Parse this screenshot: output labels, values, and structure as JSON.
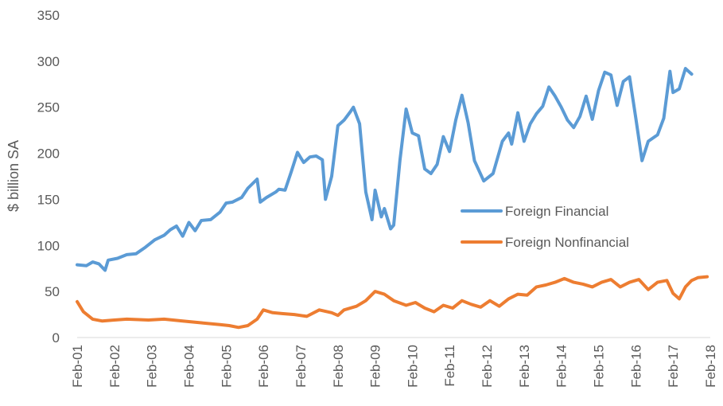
{
  "chart_data": {
    "type": "line",
    "title": "",
    "xlabel": "",
    "ylabel": "$ billion SA",
    "ylim": [
      0,
      350
    ],
    "yticks": [
      0,
      50,
      100,
      150,
      200,
      250,
      300,
      350
    ],
    "xticks": [
      "Feb-01",
      "Feb-02",
      "Feb-03",
      "Feb-04",
      "Feb-05",
      "Feb-06",
      "Feb-07",
      "Feb-08",
      "Feb-09",
      "Feb-10",
      "Feb-11",
      "Feb-12",
      "Feb-13",
      "Feb-14",
      "Feb-15",
      "Feb-16",
      "Feb-17",
      "Feb-18"
    ],
    "grid": false,
    "legend_position": "center-right",
    "series": [
      {
        "name": "Foreign Financial",
        "color": "#5b9bd5",
        "points": [
          [
            "2001-02",
            79
          ],
          [
            "2001-05",
            78
          ],
          [
            "2001-07",
            82
          ],
          [
            "2001-09",
            80
          ],
          [
            "2001-11",
            73
          ],
          [
            "2001-12",
            84
          ],
          [
            "2002-03",
            86
          ],
          [
            "2002-06",
            90
          ],
          [
            "2002-09",
            91
          ],
          [
            "2002-12",
            98
          ],
          [
            "2003-03",
            106
          ],
          [
            "2003-06",
            111
          ],
          [
            "2003-08",
            117
          ],
          [
            "2003-10",
            121
          ],
          [
            "2003-12",
            110
          ],
          [
            "2004-02",
            125
          ],
          [
            "2004-04",
            116
          ],
          [
            "2004-06",
            127
          ],
          [
            "2004-09",
            128
          ],
          [
            "2004-12",
            136
          ],
          [
            "2005-02",
            146
          ],
          [
            "2005-04",
            147
          ],
          [
            "2005-07",
            152
          ],
          [
            "2005-09",
            162
          ],
          [
            "2005-12",
            172
          ],
          [
            "2006-01",
            147
          ],
          [
            "2006-03",
            152
          ],
          [
            "2006-06",
            158
          ],
          [
            "2006-07",
            161
          ],
          [
            "2006-09",
            160
          ],
          [
            "2006-11",
            180
          ],
          [
            "2007-01",
            201
          ],
          [
            "2007-03",
            190
          ],
          [
            "2007-05",
            196
          ],
          [
            "2007-07",
            197
          ],
          [
            "2007-09",
            193
          ],
          [
            "2007-10",
            150
          ],
          [
            "2007-12",
            175
          ],
          [
            "2008-02",
            230
          ],
          [
            "2008-04",
            236
          ],
          [
            "2008-06",
            245
          ],
          [
            "2008-07",
            250
          ],
          [
            "2008-09",
            232
          ],
          [
            "2008-11",
            158
          ],
          [
            "2009-01",
            128
          ],
          [
            "2009-02",
            160
          ],
          [
            "2009-04",
            131
          ],
          [
            "2009-05",
            140
          ],
          [
            "2009-07",
            118
          ],
          [
            "2009-08",
            122
          ],
          [
            "2009-10",
            192
          ],
          [
            "2009-12",
            248
          ],
          [
            "2010-02",
            222
          ],
          [
            "2010-04",
            219
          ],
          [
            "2010-06",
            183
          ],
          [
            "2010-08",
            178
          ],
          [
            "2010-10",
            188
          ],
          [
            "2010-12",
            218
          ],
          [
            "2011-02",
            202
          ],
          [
            "2011-04",
            236
          ],
          [
            "2011-06",
            263
          ],
          [
            "2011-08",
            233
          ],
          [
            "2011-10",
            192
          ],
          [
            "2012-01",
            170
          ],
          [
            "2012-04",
            178
          ],
          [
            "2012-07",
            213
          ],
          [
            "2012-09",
            222
          ],
          [
            "2012-10",
            210
          ],
          [
            "2012-12",
            244
          ],
          [
            "2013-02",
            213
          ],
          [
            "2013-04",
            232
          ],
          [
            "2013-06",
            243
          ],
          [
            "2013-08",
            251
          ],
          [
            "2013-10",
            272
          ],
          [
            "2013-12",
            262
          ],
          [
            "2014-02",
            250
          ],
          [
            "2014-04",
            236
          ],
          [
            "2014-06",
            228
          ],
          [
            "2014-08",
            240
          ],
          [
            "2014-10",
            262
          ],
          [
            "2014-12",
            237
          ],
          [
            "2015-02",
            268
          ],
          [
            "2015-04",
            288
          ],
          [
            "2015-06",
            285
          ],
          [
            "2015-08",
            252
          ],
          [
            "2015-10",
            278
          ],
          [
            "2015-12",
            283
          ],
          [
            "2016-02",
            238
          ],
          [
            "2016-04",
            192
          ],
          [
            "2016-06",
            213
          ],
          [
            "2016-09",
            220
          ],
          [
            "2016-11",
            238
          ],
          [
            "2017-01",
            289
          ],
          [
            "2017-02",
            266
          ],
          [
            "2017-04",
            270
          ],
          [
            "2017-06",
            292
          ],
          [
            "2017-08",
            286
          ]
        ]
      },
      {
        "name": "Foreign Nonfinancial",
        "color": "#ed7d31",
        "points": [
          [
            "2001-02",
            39
          ],
          [
            "2001-04",
            28
          ],
          [
            "2001-07",
            20
          ],
          [
            "2001-10",
            18
          ],
          [
            "2002-02",
            19
          ],
          [
            "2002-06",
            20
          ],
          [
            "2003-01",
            19
          ],
          [
            "2003-06",
            20
          ],
          [
            "2003-12",
            18
          ],
          [
            "2004-06",
            16
          ],
          [
            "2004-12",
            14
          ],
          [
            "2005-03",
            13
          ],
          [
            "2005-06",
            11
          ],
          [
            "2005-09",
            13
          ],
          [
            "2005-12",
            20
          ],
          [
            "2006-02",
            30
          ],
          [
            "2006-05",
            27
          ],
          [
            "2006-08",
            26
          ],
          [
            "2006-12",
            25
          ],
          [
            "2007-04",
            23
          ],
          [
            "2007-08",
            30
          ],
          [
            "2007-12",
            27
          ],
          [
            "2008-02",
            24
          ],
          [
            "2008-04",
            30
          ],
          [
            "2008-08",
            34
          ],
          [
            "2008-11",
            40
          ],
          [
            "2009-02",
            50
          ],
          [
            "2009-05",
            47
          ],
          [
            "2009-08",
            40
          ],
          [
            "2009-12",
            35
          ],
          [
            "2010-03",
            38
          ],
          [
            "2010-06",
            32
          ],
          [
            "2010-09",
            28
          ],
          [
            "2010-12",
            35
          ],
          [
            "2011-03",
            32
          ],
          [
            "2011-06",
            40
          ],
          [
            "2011-09",
            36
          ],
          [
            "2011-12",
            33
          ],
          [
            "2012-03",
            40
          ],
          [
            "2012-06",
            34
          ],
          [
            "2012-09",
            42
          ],
          [
            "2012-12",
            47
          ],
          [
            "2013-03",
            46
          ],
          [
            "2013-06",
            55
          ],
          [
            "2013-09",
            57
          ],
          [
            "2013-12",
            60
          ],
          [
            "2014-03",
            64
          ],
          [
            "2014-06",
            60
          ],
          [
            "2014-09",
            58
          ],
          [
            "2014-12",
            55
          ],
          [
            "2015-03",
            60
          ],
          [
            "2015-06",
            63
          ],
          [
            "2015-09",
            55
          ],
          [
            "2015-12",
            60
          ],
          [
            "2016-03",
            63
          ],
          [
            "2016-06",
            52
          ],
          [
            "2016-09",
            60
          ],
          [
            "2016-12",
            62
          ],
          [
            "2017-02",
            48
          ],
          [
            "2017-04",
            42
          ],
          [
            "2017-06",
            55
          ],
          [
            "2017-08",
            62
          ],
          [
            "2017-10",
            65
          ],
          [
            "2018-01",
            66
          ]
        ]
      }
    ]
  }
}
